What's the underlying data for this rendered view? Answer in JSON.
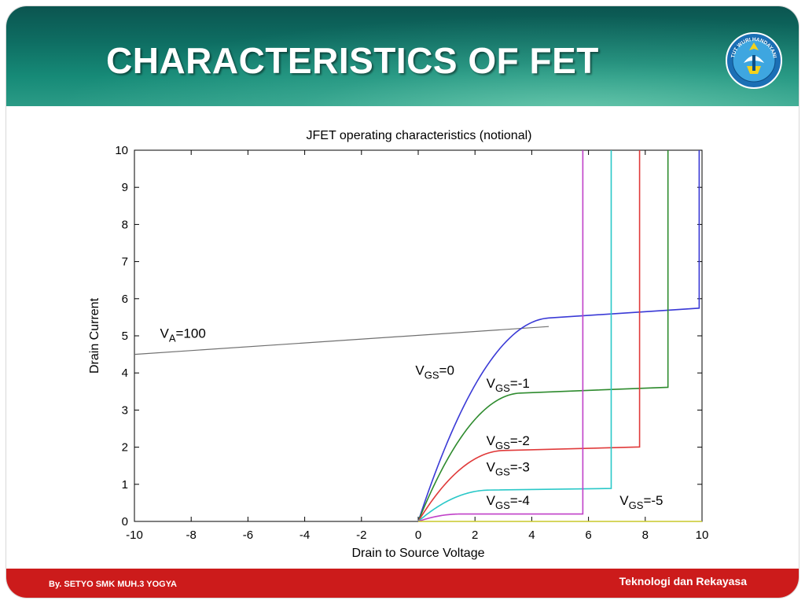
{
  "slide": {
    "title": "CHARACTERISTICS OF FET",
    "logo_text": "TUT WURI HANDAYANI",
    "footer_left": "By. SETYO SMK MUH.3 YOGYA",
    "footer_right": "Teknologi dan Rekayasa"
  },
  "colors": {
    "vgs0": "#3a3ad6",
    "vgs1": "#2e8b2e",
    "vgs2": "#e03a3a",
    "vgs3": "#2ac8c8",
    "vgs4": "#c040c8",
    "vgs5": "#c8c82a",
    "va": "#707070"
  },
  "chart_data": {
    "type": "line",
    "title": "JFET operating characteristics (notional)",
    "xlabel": "Drain to Source Voltage",
    "ylabel": "Drain Current",
    "xlim": [
      -10,
      10
    ],
    "ylim": [
      0,
      10
    ],
    "xticks": [
      -10,
      -8,
      -6,
      -4,
      -2,
      0,
      2,
      4,
      6,
      8,
      10
    ],
    "yticks": [
      0,
      1,
      2,
      3,
      4,
      5,
      6,
      7,
      8,
      9,
      10
    ],
    "grid": false,
    "series": [
      {
        "label_main": "V",
        "label_sub": "GS",
        "label_value": "=0",
        "color_key": "vgs0",
        "sat": 5.25,
        "knee": 4.6,
        "slope": 0.05,
        "breakdown": 9.9
      },
      {
        "label_main": "V",
        "label_sub": "GS",
        "label_value": "=-1",
        "color_key": "vgs1",
        "sat": 3.35,
        "knee": 3.6,
        "slope": 0.03,
        "breakdown": 8.8
      },
      {
        "label_main": "V",
        "label_sub": "GS",
        "label_value": "=-2",
        "color_key": "vgs2",
        "sat": 1.85,
        "knee": 3.0,
        "slope": 0.02,
        "breakdown": 7.8
      },
      {
        "label_main": "V",
        "label_sub": "GS",
        "label_value": "=-3",
        "color_key": "vgs3",
        "sat": 0.82,
        "knee": 2.5,
        "slope": 0.01,
        "breakdown": 6.8
      },
      {
        "label_main": "V",
        "label_sub": "GS",
        "label_value": "=-4",
        "color_key": "vgs4",
        "sat": 0.2,
        "knee": 1.5,
        "slope": 0.0,
        "breakdown": 5.8
      },
      {
        "label_main": "V",
        "label_sub": "GS",
        "label_value": "=-5",
        "color_key": "vgs5",
        "sat": 0.0,
        "knee": 0.0,
        "slope": 0.0,
        "breakdown": 10
      }
    ],
    "early_line": {
      "label_main": "V",
      "label_sub": "A",
      "label_value": "=100",
      "x": [
        -10,
        4.6
      ],
      "y": [
        4.5,
        5.25
      ]
    }
  }
}
